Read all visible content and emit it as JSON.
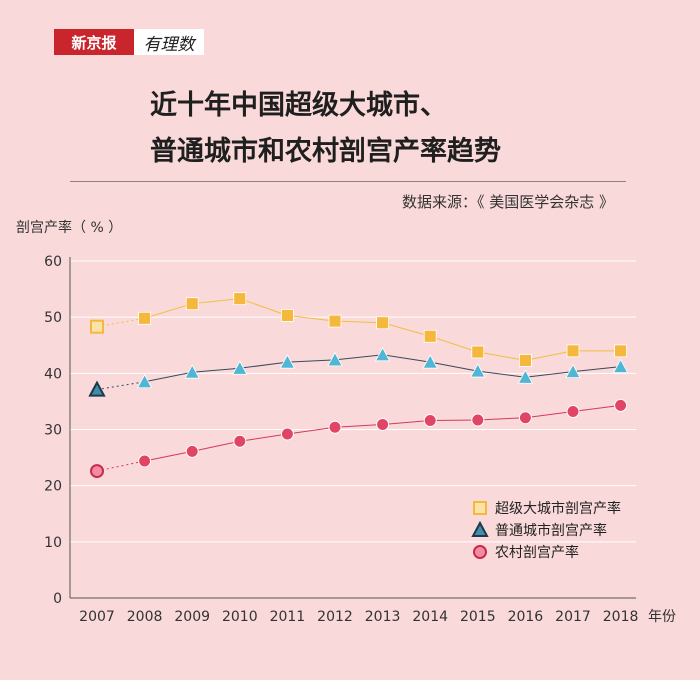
{
  "header": {
    "brand": "新京报",
    "column": "有理数",
    "title_line1": "近十年中国超级大城市、",
    "title_line2": "普通城市和农村剖宫产率趋势",
    "source": "数据来源：《 美国医学会杂志 》"
  },
  "chart_data": {
    "type": "line",
    "ylabel": "剖宫产率（ % ）",
    "xlabel": "年份",
    "ylim": [
      0,
      60
    ],
    "yticks": [
      0,
      10,
      20,
      30,
      40,
      50,
      60
    ],
    "categories": [
      "2007",
      "2008",
      "2009",
      "2010",
      "2011",
      "2012",
      "2013",
      "2014",
      "2015",
      "2016",
      "2017",
      "2018"
    ],
    "grid": true,
    "legend_position": "bottom-right",
    "series": [
      {
        "name": "超级大城市剖宫产率",
        "marker": "square",
        "color": "#f5b83d",
        "line_color": "#f0c040",
        "values": [
          48.3,
          49.8,
          52.4,
          53.3,
          50.3,
          49.3,
          49.0,
          46.6,
          43.8,
          42.3,
          44.0,
          44.0
        ]
      },
      {
        "name": "普通城市剖宫产率",
        "marker": "triangle",
        "color": "#4fb6d6",
        "line_color": "#3a4a5a",
        "values": [
          37.1,
          38.5,
          40.2,
          40.9,
          42.0,
          42.4,
          43.3,
          42.0,
          40.4,
          39.3,
          40.3,
          41.2
        ]
      },
      {
        "name": "农村剖宫产率",
        "marker": "circle",
        "color": "#e04566",
        "line_color": "#d23a5c",
        "values": [
          22.6,
          24.4,
          26.1,
          27.9,
          29.2,
          30.4,
          30.9,
          31.6,
          31.7,
          32.1,
          33.2,
          34.3
        ]
      }
    ]
  }
}
